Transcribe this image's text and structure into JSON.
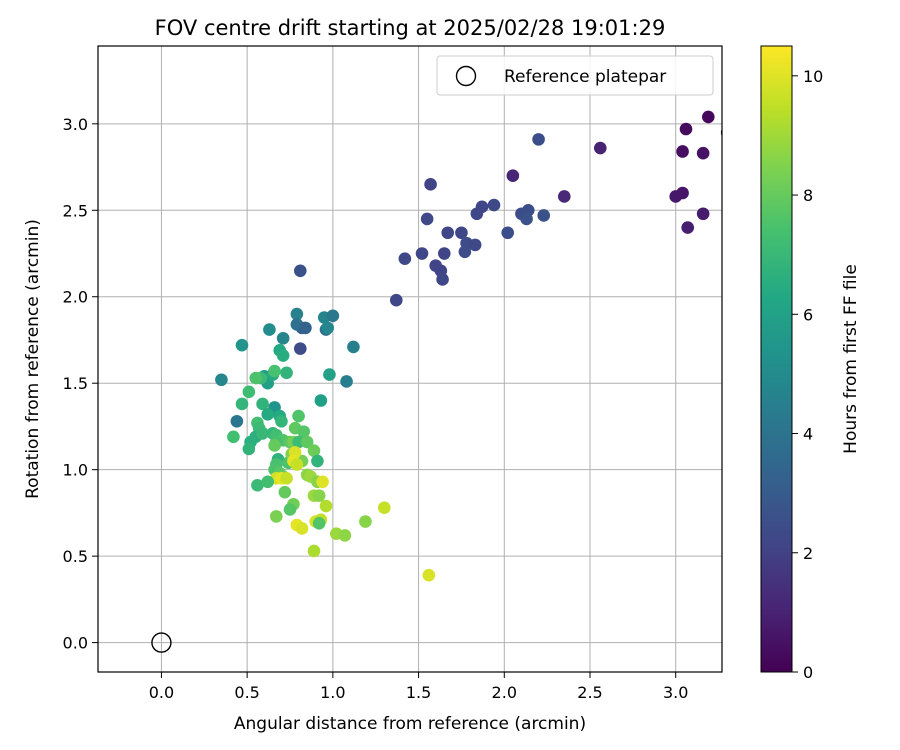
{
  "chart_data": {
    "type": "scatter",
    "title": "FOV centre drift starting at 2025/02/28 19:01:29",
    "xlabel": "Angular distance from reference (arcmin)",
    "ylabel": "Rotation from reference (arcmin)",
    "xlim": [
      -0.37,
      3.27
    ],
    "ylim": [
      -0.17,
      3.45
    ],
    "xticks": [
      0.0,
      0.5,
      1.0,
      1.5,
      2.0,
      2.5,
      3.0
    ],
    "xtick_labels": [
      "0.0",
      "0.5",
      "1.0",
      "1.5",
      "2.0",
      "2.5",
      "3.0"
    ],
    "yticks": [
      0.0,
      0.5,
      1.0,
      1.5,
      2.0,
      2.5,
      3.0
    ],
    "ytick_labels": [
      "0.0",
      "0.5",
      "1.0",
      "1.5",
      "2.0",
      "2.5",
      "3.0"
    ],
    "grid": true,
    "legend": {
      "position": "upper right",
      "entries": [
        "Reference platepar"
      ]
    },
    "reference_point": {
      "x": 0.0,
      "y": 0.0,
      "label": "Reference platepar"
    },
    "colorbar": {
      "label": "Hours from first FF file",
      "range": [
        0,
        10.5
      ],
      "ticks": [
        0,
        2,
        4,
        6,
        8,
        10
      ],
      "tick_labels": [
        "0",
        "2",
        "4",
        "6",
        "8",
        "10"
      ],
      "colormap": "viridis"
    },
    "points": [
      [
        3.3,
        2.95,
        0.1
      ],
      [
        3.19,
        3.04,
        0.2
      ],
      [
        3.06,
        2.97,
        0.3
      ],
      [
        3.04,
        2.84,
        0.4
      ],
      [
        3.16,
        2.83,
        0.5
      ],
      [
        3.04,
        2.6,
        0.6
      ],
      [
        3.0,
        2.58,
        0.7
      ],
      [
        3.16,
        2.48,
        0.8
      ],
      [
        3.07,
        2.4,
        0.9
      ],
      [
        2.56,
        2.86,
        1.0
      ],
      [
        2.05,
        2.7,
        1.1
      ],
      [
        2.35,
        2.58,
        1.2
      ],
      [
        2.2,
        2.91,
        2.5
      ],
      [
        2.23,
        2.47,
        2.6
      ],
      [
        2.14,
        2.5,
        2.5
      ],
      [
        2.1,
        2.48,
        2.5
      ],
      [
        2.13,
        2.45,
        2.6
      ],
      [
        2.02,
        2.37,
        2.5
      ],
      [
        1.94,
        2.53,
        2.3
      ],
      [
        1.87,
        2.52,
        2.2
      ],
      [
        1.84,
        2.48,
        2.2
      ],
      [
        1.75,
        2.37,
        2.2
      ],
      [
        1.78,
        2.31,
        2.4
      ],
      [
        1.77,
        2.26,
        2.4
      ],
      [
        1.83,
        2.3,
        2.3
      ],
      [
        1.67,
        2.37,
        2.2
      ],
      [
        1.65,
        2.25,
        2.1
      ],
      [
        1.6,
        2.18,
        2.1
      ],
      [
        1.63,
        2.15,
        2.1
      ],
      [
        1.64,
        2.1,
        2.2
      ],
      [
        1.52,
        2.25,
        2.2
      ],
      [
        1.42,
        2.22,
        2.3
      ],
      [
        1.55,
        2.45,
        2.3
      ],
      [
        1.57,
        2.65,
        2.1
      ],
      [
        1.37,
        1.98,
        2.2
      ],
      [
        0.81,
        2.15,
        2.6
      ],
      [
        0.81,
        1.7,
        2.4
      ],
      [
        0.82,
        1.82,
        3.1
      ],
      [
        0.79,
        1.9,
        4.6
      ],
      [
        0.79,
        1.84,
        3.9
      ],
      [
        0.84,
        1.82,
        3.3
      ],
      [
        0.95,
        1.88,
        4.7
      ],
      [
        1.0,
        1.89,
        4.2
      ],
      [
        0.96,
        1.81,
        3.9
      ],
      [
        0.97,
        1.82,
        4.8
      ],
      [
        1.12,
        1.71,
        4.5
      ],
      [
        1.08,
        1.51,
        4.5
      ],
      [
        0.93,
        1.4,
        5.9
      ],
      [
        0.98,
        1.55,
        6.0
      ],
      [
        0.63,
        1.81,
        5.1
      ],
      [
        0.71,
        1.76,
        4.7
      ],
      [
        0.69,
        1.69,
        6.3
      ],
      [
        0.71,
        1.66,
        6.5
      ],
      [
        0.47,
        1.72,
        5.4
      ],
      [
        0.35,
        1.52,
        4.8
      ],
      [
        0.44,
        1.28,
        4.1
      ],
      [
        0.6,
        1.54,
        5.6
      ],
      [
        0.62,
        1.5,
        5.9
      ],
      [
        0.65,
        1.55,
        6.4
      ],
      [
        0.58,
        1.53,
        7.1
      ],
      [
        0.55,
        1.53,
        7.5
      ],
      [
        0.66,
        1.57,
        7.4
      ],
      [
        0.73,
        1.56,
        6.8
      ],
      [
        0.51,
        1.45,
        7.2
      ],
      [
        0.47,
        1.38,
        6.9
      ],
      [
        0.59,
        1.38,
        6.8
      ],
      [
        0.66,
        1.36,
        5.4
      ],
      [
        0.62,
        1.32,
        6.4
      ],
      [
        0.69,
        1.31,
        6.4
      ],
      [
        0.56,
        1.27,
        7.3
      ],
      [
        0.7,
        1.28,
        6.9
      ],
      [
        0.8,
        1.31,
        7.6
      ],
      [
        0.78,
        1.24,
        7.9
      ],
      [
        0.83,
        1.22,
        7.7
      ],
      [
        0.57,
        1.24,
        7.1
      ],
      [
        0.59,
        1.21,
        7.4
      ],
      [
        0.65,
        1.21,
        6.9
      ],
      [
        0.55,
        1.19,
        6.6
      ],
      [
        0.42,
        1.19,
        7.3
      ],
      [
        0.52,
        1.16,
        6.6
      ],
      [
        0.51,
        1.12,
        6.8
      ],
      [
        0.59,
        1.21,
        7.0
      ],
      [
        0.67,
        1.2,
        7.3
      ],
      [
        0.71,
        1.17,
        7.6
      ],
      [
        0.75,
        1.16,
        7.8
      ],
      [
        0.67,
        1.16,
        7.4
      ],
      [
        0.66,
        1.14,
        8.0
      ],
      [
        0.77,
        1.16,
        8.3
      ],
      [
        0.8,
        1.16,
        7.2
      ],
      [
        0.85,
        1.16,
        7.9
      ],
      [
        0.89,
        1.11,
        8.1
      ],
      [
        0.68,
        1.06,
        6.7
      ],
      [
        0.67,
        1.03,
        7.4
      ],
      [
        0.74,
        1.04,
        7.5
      ],
      [
        0.82,
        1.05,
        8.3
      ],
      [
        0.76,
        1.09,
        8.5
      ],
      [
        0.78,
        1.1,
        9.9
      ],
      [
        0.77,
        1.05,
        10.1
      ],
      [
        0.79,
        1.03,
        9.6
      ],
      [
        0.91,
        1.05,
        6.8
      ],
      [
        0.66,
        1.0,
        7.5
      ],
      [
        0.69,
        0.98,
        7.8
      ],
      [
        0.71,
        0.96,
        8.1
      ],
      [
        0.85,
        0.97,
        8.7
      ],
      [
        0.87,
        0.96,
        8.9
      ],
      [
        0.91,
        0.93,
        8.6
      ],
      [
        0.94,
        0.93,
        10.0
      ],
      [
        0.67,
        0.95,
        9.8
      ],
      [
        0.7,
        0.95,
        10.1
      ],
      [
        0.73,
        0.95,
        9.6
      ],
      [
        0.56,
        0.91,
        7.1
      ],
      [
        0.62,
        0.93,
        7.3
      ],
      [
        0.72,
        0.87,
        8.0
      ],
      [
        0.77,
        0.8,
        8.2
      ],
      [
        0.75,
        0.77,
        7.7
      ],
      [
        0.89,
        0.85,
        8.9
      ],
      [
        0.92,
        0.85,
        8.6
      ],
      [
        0.96,
        0.79,
        9.3
      ],
      [
        1.3,
        0.78,
        9.6
      ],
      [
        0.67,
        0.73,
        8.4
      ],
      [
        0.9,
        0.7,
        9.8
      ],
      [
        0.93,
        0.71,
        9.5
      ],
      [
        0.79,
        0.68,
        10.1
      ],
      [
        0.82,
        0.66,
        9.9
      ],
      [
        1.19,
        0.7,
        8.6
      ],
      [
        1.02,
        0.63,
        8.9
      ],
      [
        1.07,
        0.62,
        8.7
      ],
      [
        0.89,
        0.53,
        9.2
      ],
      [
        1.56,
        0.39,
        9.9
      ],
      [
        0.92,
        0.69,
        7.6
      ]
    ]
  }
}
